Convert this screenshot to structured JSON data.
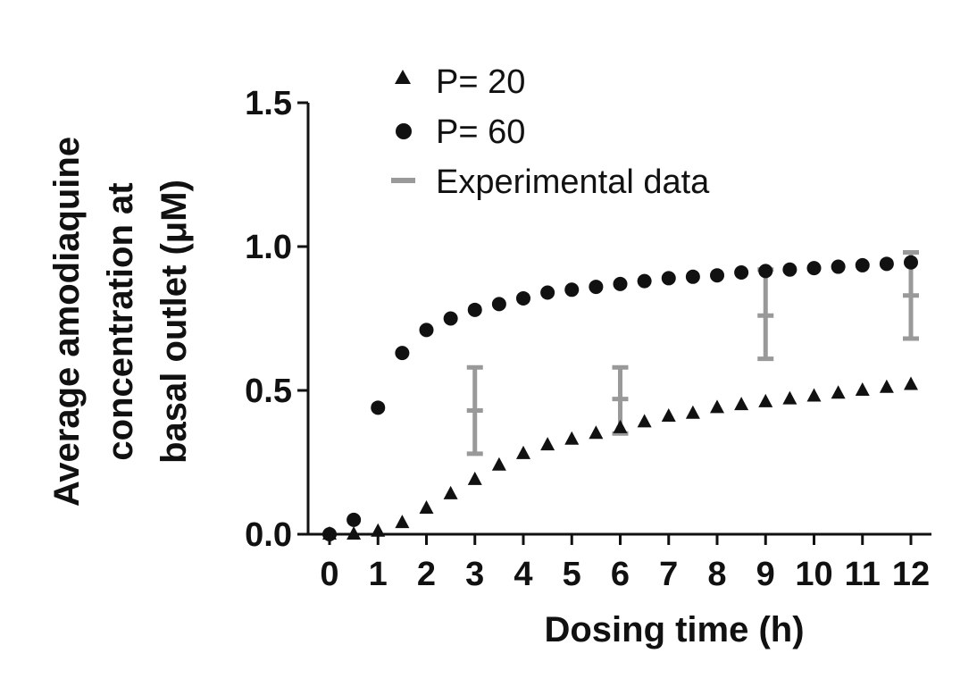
{
  "chart_data": {
    "type": "scatter",
    "title": "",
    "xlabel": "Dosing time (h)",
    "ylabel_lines": [
      "Average amodiaquine",
      "concentration at",
      "basal outlet (μM)"
    ],
    "xlim": [
      0,
      12
    ],
    "ylim": [
      0,
      1.5
    ],
    "xticks": [
      0,
      1,
      2,
      3,
      4,
      5,
      6,
      7,
      8,
      9,
      10,
      11,
      12
    ],
    "xtick_labels": [
      "0",
      "1",
      "2",
      "3",
      "4",
      "5",
      "6",
      "7",
      "8",
      "9",
      "10",
      "11",
      "12"
    ],
    "yticks": [
      0,
      0.5,
      1.0,
      1.5
    ],
    "ytick_labels": [
      "0.0",
      "0.5",
      "1.0",
      "1.5"
    ],
    "grid": false,
    "legend_position": "top",
    "series": [
      {
        "name": "P= 20",
        "marker": "triangle",
        "color": "#111111",
        "x": [
          0,
          0.5,
          1,
          1.5,
          2,
          2.5,
          3,
          3.5,
          4,
          4.5,
          5,
          5.5,
          6,
          6.5,
          7,
          7.5,
          8,
          8.5,
          9,
          9.5,
          10,
          10.5,
          11,
          11.5,
          12
        ],
        "y": [
          0.0,
          0.0,
          0.01,
          0.04,
          0.09,
          0.14,
          0.19,
          0.24,
          0.28,
          0.31,
          0.33,
          0.35,
          0.37,
          0.39,
          0.41,
          0.42,
          0.44,
          0.45,
          0.46,
          0.47,
          0.48,
          0.49,
          0.5,
          0.51,
          0.52
        ]
      },
      {
        "name": "P= 60",
        "marker": "circle",
        "color": "#111111",
        "x": [
          0,
          0.5,
          1,
          1.5,
          2,
          2.5,
          3,
          3.5,
          4,
          4.5,
          5,
          5.5,
          6,
          6.5,
          7,
          7.5,
          8,
          8.5,
          9,
          9.5,
          10,
          10.5,
          11,
          11.5,
          12
        ],
        "y": [
          0.0,
          0.05,
          0.44,
          0.63,
          0.71,
          0.75,
          0.78,
          0.8,
          0.82,
          0.84,
          0.85,
          0.86,
          0.87,
          0.88,
          0.89,
          0.895,
          0.9,
          0.91,
          0.915,
          0.92,
          0.925,
          0.93,
          0.935,
          0.94,
          0.945
        ]
      },
      {
        "name": "Experimental data",
        "marker": "errorbar",
        "color": "#999999",
        "x": [
          3,
          6,
          9,
          12
        ],
        "y": [
          0.43,
          0.47,
          0.76,
          0.83
        ],
        "err_low": [
          0.28,
          0.35,
          0.61,
          0.68
        ],
        "err_high": [
          0.58,
          0.58,
          0.92,
          0.98
        ]
      }
    ]
  }
}
